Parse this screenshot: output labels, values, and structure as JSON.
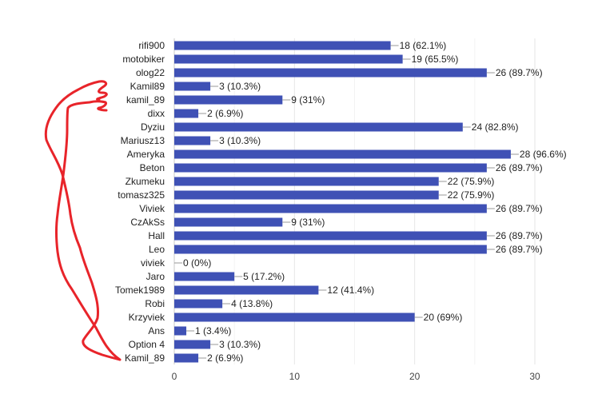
{
  "chart_data": {
    "type": "bar",
    "orientation": "horizontal",
    "categories": [
      "rifi900",
      "motobiker",
      "olog22",
      "Kamil89",
      "kamil_89",
      "dixx",
      "Dyziu",
      "Mariusz13",
      "Ameryka",
      "Beton",
      "Zkumeku",
      "tomasz325",
      "Viviek",
      "CzAkSs",
      "Hall",
      "Leo",
      "viviek",
      "Jaro",
      "Tomek1989",
      "Robi",
      "Krzyviek",
      "Ans",
      "Option 4",
      "Kamil_89"
    ],
    "values": [
      18,
      19,
      26,
      3,
      9,
      2,
      24,
      3,
      28,
      26,
      22,
      22,
      26,
      9,
      26,
      26,
      0,
      5,
      12,
      4,
      20,
      1,
      3,
      2
    ],
    "data_labels": [
      "18 (62.1%)",
      "19 (65.5%)",
      "26 (89.7%)",
      "3 (10.3%)",
      "9 (31%)",
      "2 (6.9%)",
      "24 (82.8%)",
      "3 (10.3%)",
      "28 (96.6%)",
      "26 (89.7%)",
      "22 (75.9%)",
      "22 (75.9%)",
      "26 (89.7%)",
      "9 (31%)",
      "26 (89.7%)",
      "26 (89.7%)",
      "0 (0%)",
      "5 (17.2%)",
      "12 (41.4%)",
      "4 (13.8%)",
      "20 (69%)",
      "1 (3.4%)",
      "3 (10.3%)",
      "2 (6.9%)"
    ],
    "xticks": [
      "0",
      "10",
      "20",
      "30"
    ],
    "xlim": [
      0,
      30
    ],
    "grid": true,
    "title": "",
    "xlabel": "",
    "ylabel": "",
    "bar_color": "#3f51b5",
    "annotation_color": "#e8242a"
  }
}
